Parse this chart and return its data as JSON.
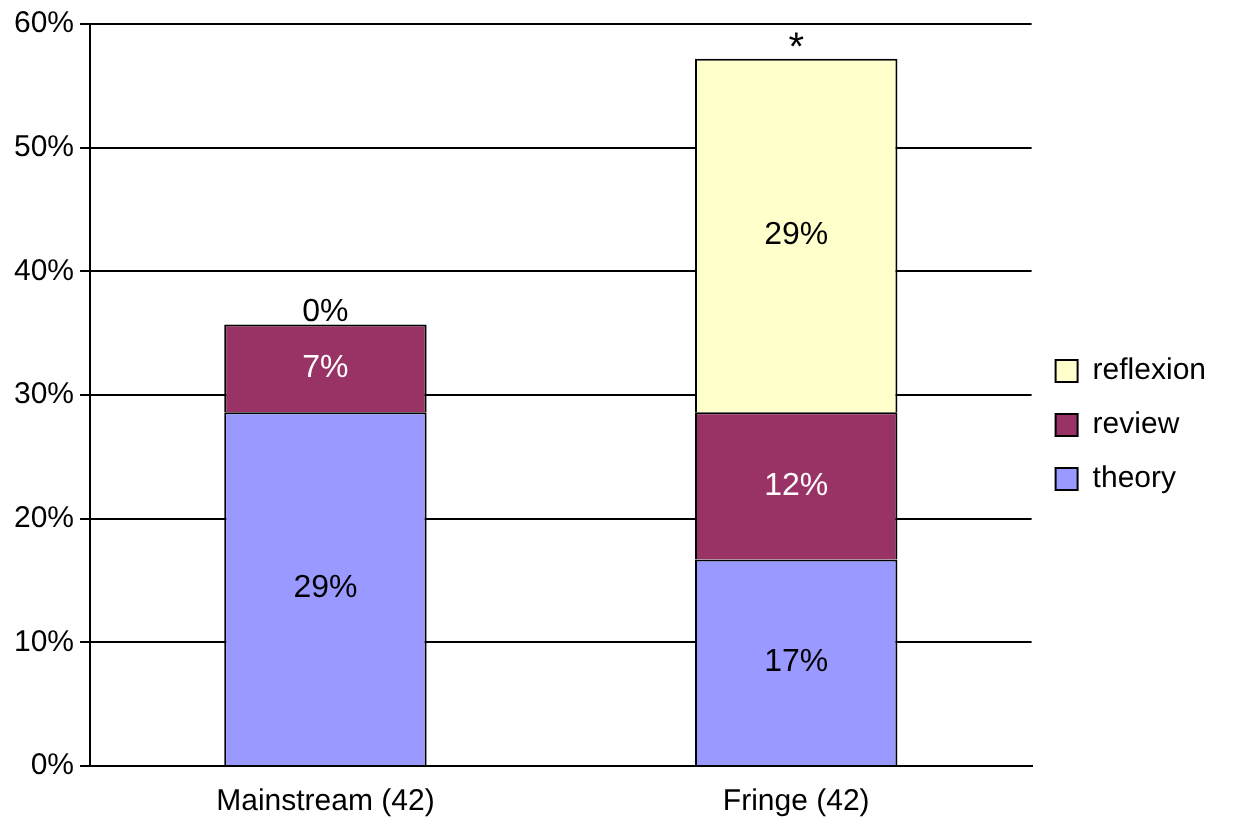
{
  "chart_data": {
    "type": "bar",
    "stacked": true,
    "categories": [
      "Mainstream (42)",
      "Fringe (42)"
    ],
    "series": [
      {
        "name": "theory",
        "color": "#9999ff",
        "values": [
          28.6,
          16.7
        ],
        "value_labels": [
          "29%",
          "17%"
        ]
      },
      {
        "name": "review",
        "color": "#993366",
        "values": [
          7.1,
          11.9
        ],
        "value_labels": [
          "7%",
          "12%"
        ]
      },
      {
        "name": "reflexion",
        "color": "#ffffcc",
        "values": [
          0,
          28.6
        ],
        "value_labels": [
          "0%",
          "29%"
        ]
      }
    ],
    "ylim": [
      0,
      60
    ],
    "yticks": [
      {
        "value": 0,
        "label": "0%"
      },
      {
        "value": 10,
        "label": "10%"
      },
      {
        "value": 20,
        "label": "20%"
      },
      {
        "value": 30,
        "label": "30%"
      },
      {
        "value": 40,
        "label": "40%"
      },
      {
        "value": 50,
        "label": "50%"
      },
      {
        "value": 60,
        "label": "60%"
      }
    ],
    "grid": "y",
    "legend": "right",
    "annotations": [
      {
        "text": "*",
        "x": "Fringe (42)",
        "y": 57.3
      }
    ]
  }
}
